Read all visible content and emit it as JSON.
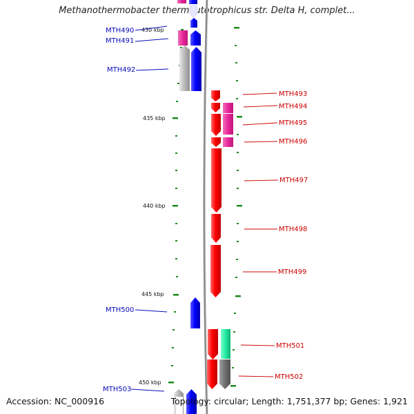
{
  "title": "Methanothermobacter thermautotrophicus str. Delta H, complet...",
  "footer": {
    "accession": "Accession: NC_000916",
    "stats": "Topology: circular; Length: 1,751,377 bp; Genes: 1,921"
  },
  "colors": {
    "forward_cds": "#0b0bff",
    "reverse_cds": "#ff0a0a",
    "forward_other": "#ee2a9a",
    "reverse_other": "#ee2a9a",
    "rna": "#22e8a0",
    "pseudo": "#a8a8a8",
    "pseudo_dark": "#7a7a7a",
    "tick": "#1a8a1a",
    "backbone": "#8c8c8c",
    "forward_label": "#0a0ab8",
    "reverse_label": "#cc0000"
  },
  "axis": {
    "unit": "kbp",
    "major_ticks": [
      "430 kbp",
      "435 kbp",
      "440 kbp",
      "445 kbp",
      "450 kbp"
    ]
  },
  "genes": [
    {
      "name": "MTH490",
      "strand": "+"
    },
    {
      "name": "MTH491",
      "strand": "+"
    },
    {
      "name": "MTH492",
      "strand": "+"
    },
    {
      "name": "MTH493",
      "strand": "-"
    },
    {
      "name": "MTH494",
      "strand": "-"
    },
    {
      "name": "MTH495",
      "strand": "-"
    },
    {
      "name": "MTH496",
      "strand": "-"
    },
    {
      "name": "MTH497",
      "strand": "-"
    },
    {
      "name": "MTH498",
      "strand": "-"
    },
    {
      "name": "MTH499",
      "strand": "-"
    },
    {
      "name": "MTH500",
      "strand": "+"
    },
    {
      "name": "MTH501",
      "strand": "-"
    },
    {
      "name": "MTH502",
      "strand": "-"
    },
    {
      "name": "MTH503",
      "strand": "+"
    }
  ]
}
